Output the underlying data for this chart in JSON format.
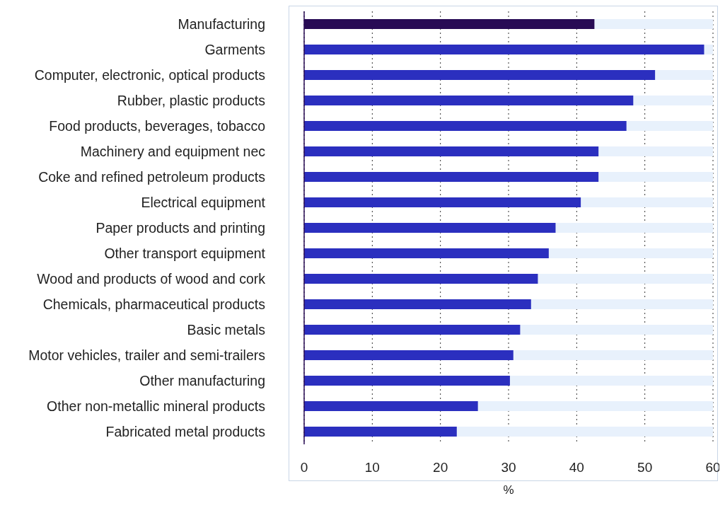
{
  "chart_data": {
    "type": "bar",
    "orientation": "horizontal",
    "xlabel": "%",
    "categories": [
      "Manufacturing",
      "Garments",
      "Computer, electronic, optical products",
      "Rubber, plastic products",
      "Food products, beverages, tobacco",
      "Machinery and equipment nec",
      "Coke and refined petroleum products",
      "Electrical equipment",
      "Paper products and printing",
      "Other transport equipment",
      "Wood and products of wood and cork",
      "Chemicals, pharmaceutical products",
      "Basic metals",
      "Motor vehicles, trailer and semi-trailers",
      "Other manufacturing",
      "Other non-metallic mineral products",
      "Fabricated metal products"
    ],
    "values": [
      42.6,
      58.7,
      51.5,
      48.3,
      47.3,
      43.2,
      43.2,
      40.6,
      36.9,
      35.9,
      34.3,
      33.3,
      31.7,
      30.7,
      30.2,
      25.5,
      22.4
    ],
    "colors": [
      "#280b55",
      "#2b2fbf",
      "#2b2fbf",
      "#2b2fbf",
      "#2b2fbf",
      "#2b2fbf",
      "#2b2fbf",
      "#2b2fbf",
      "#2b2fbf",
      "#2b2fbf",
      "#2b2fbf",
      "#2b2fbf",
      "#2b2fbf",
      "#2b2fbf",
      "#2b2fbf",
      "#2b2fbf",
      "#2b2fbf"
    ],
    "xlim": [
      0,
      60
    ],
    "xticks": [
      0,
      10,
      20,
      30,
      40,
      50,
      60
    ],
    "grid": "x",
    "legend": false
  }
}
